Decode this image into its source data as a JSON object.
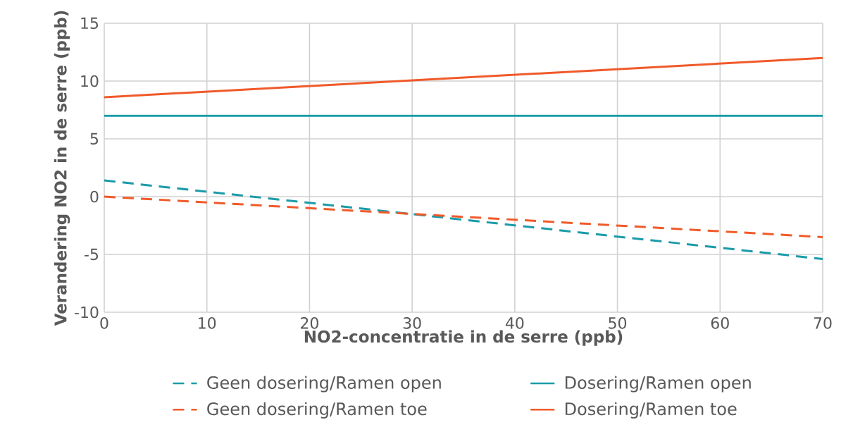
{
  "chart_data": {
    "type": "line",
    "xlabel": "NO2-concentratie in de serre (ppb)",
    "ylabel": "Verandering NO2 in de serre (ppb)",
    "x": [
      0,
      70
    ],
    "xlim": [
      0,
      70
    ],
    "xticks": [
      0,
      10,
      20,
      30,
      40,
      50,
      60,
      70
    ],
    "ylim": [
      -10,
      15
    ],
    "yticks": [
      -10,
      -5,
      0,
      5,
      10,
      15
    ],
    "grid": true,
    "legend": "bottom",
    "series": [
      {
        "name": "Geen dosering/Ramen open",
        "color": "#1a9ba8",
        "line_style": "dashed",
        "values": [
          1.4,
          -5.4
        ]
      },
      {
        "name": "Dosering/Ramen open",
        "color": "#1a9ba8",
        "line_style": "solid",
        "values": [
          7,
          7
        ]
      },
      {
        "name": "Geen dosering/Ramen toe",
        "color": "#f05a2a",
        "line_style": "dashed",
        "values": [
          0,
          -3.5
        ]
      },
      {
        "name": "Dosering/Ramen toe",
        "color": "#f05a2a",
        "line_style": "solid",
        "values": [
          8.6,
          12
        ]
      }
    ]
  }
}
